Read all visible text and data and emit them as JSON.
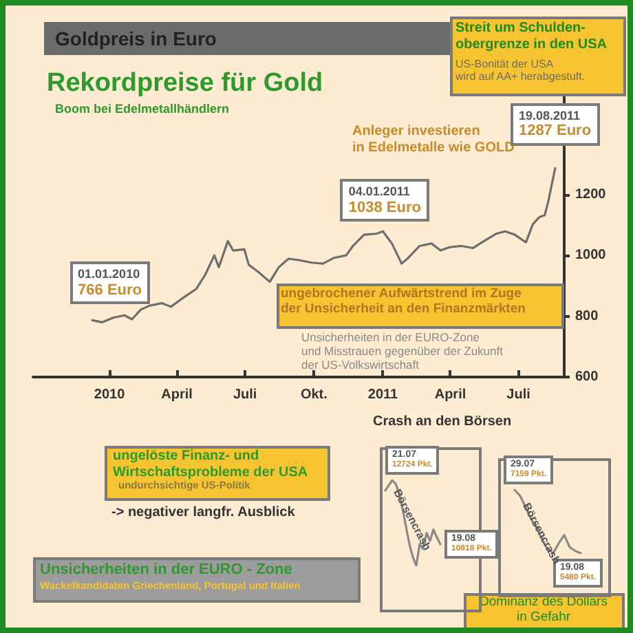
{
  "chart_data": [
    {
      "type": "line",
      "title": "Goldpreis in Euro",
      "subtitle": "Rekordpreise für Gold",
      "x": [
        "2009-12-09",
        "2009-12-22",
        "2010-01-06",
        "2010-01-21",
        "2010-01-31",
        "2010-02-12",
        "2010-02-24",
        "2010-03-12",
        "2010-03-24",
        "2010-04-08",
        "2010-04-27",
        "2010-05-09",
        "2010-05-21",
        "2010-05-27",
        "2010-06-08",
        "2010-06-15",
        "2010-06-30",
        "2010-07-06",
        "2010-07-19",
        "2010-08-03",
        "2010-08-15",
        "2010-08-28",
        "2010-09-12",
        "2010-09-28",
        "2010-10-13",
        "2010-10-28",
        "2010-11-13",
        "2010-11-22",
        "2010-12-07",
        "2010-12-23",
        "2011-01-01",
        "2011-01-13",
        "2011-01-26",
        "2011-02-04",
        "2011-02-19",
        "2011-03-07",
        "2011-03-19",
        "2011-03-31",
        "2011-04-16",
        "2011-05-01",
        "2011-05-16",
        "2011-06-01",
        "2011-06-13",
        "2011-06-26",
        "2011-07-11",
        "2011-07-20",
        "2011-07-29",
        "2011-08-05",
        "2011-08-10",
        "2011-08-15",
        "2011-08-19"
      ],
      "series": [
        {
          "color": "#6e6e6e",
          "values": [
            787,
            780,
            795,
            803,
            790,
            822,
            835,
            843,
            831,
            858,
            890,
            937,
            1000,
            961,
            1047,
            1016,
            1020,
            969,
            945,
            913,
            961,
            989,
            984,
            976,
            973,
            992,
            1000,
            1031,
            1068,
            1071,
            1079,
            1039,
            973,
            992,
            1031,
            1039,
            1016,
            1027,
            1031,
            1024,
            1047,
            1071,
            1079,
            1068,
            1043,
            1102,
            1126,
            1132,
            1180,
            1240,
            1287
          ]
        }
      ],
      "xlim": [
        "2009-09-21",
        "2011-08-31"
      ],
      "xticks": [
        {
          "value": "2010-01-01",
          "label": "2010"
        },
        {
          "value": "2010-04-01",
          "label": "April"
        },
        {
          "value": "2010-07-01",
          "label": "Juli"
        },
        {
          "value": "2010-10-01",
          "label": "Okt."
        },
        {
          "value": "2011-01-01",
          "label": "2011"
        },
        {
          "value": "2011-04-01",
          "label": "April"
        },
        {
          "value": "2011-07-01",
          "label": "Juli"
        }
      ],
      "ylim": [
        600,
        1550
      ],
      "yticks": [
        600,
        800,
        1000,
        1200
      ],
      "grid": false,
      "annotations": [
        "Boom bei Edelmetallhändlern",
        "Streit um Schulden-\nobergrenze in den USA",
        "US-Bonität der USA\nwird auf AA+ herabgestuft.",
        "Anleger investieren\nin Edelmetalle wie GOLD",
        {
          "text": "04.01.2011\n1038 Euro",
          "x": "2011-01-04",
          "y": 1038
        },
        {
          "text": "19.08.2011\n1287 Euro",
          "x": "2011-08-19",
          "y": 1287
        },
        {
          "text": "01.01.2010\n766 Euro",
          "x": "2010-01-01",
          "y": 766
        },
        "ungebrochener Aufwärtstrend im Zuge\nder Unsicherheit an den Finanzmärkten",
        "Unsicherheiten in der EURO-Zone\nund Misstrauen gegenüber der Zukunft\nder US-Volkswirtschaft",
        "Crash an den Börsen",
        "ungelöste Finanz- und\nWirtschaftsprobleme der USA",
        "undurchsichtige US-Politik",
        "-> negativer langfr. Ausblick",
        "Unsicherheiten in der EURO - Zone",
        "Wackelkandidaten Griechenland, Portugal und Italien",
        "Dominanz des Dollars\nin Gefahr"
      ]
    },
    {
      "type": "line",
      "categories": [
        null,
        null,
        null,
        null,
        null,
        null,
        null,
        null,
        null,
        null,
        null,
        null,
        null,
        null,
        null,
        null,
        null
      ],
      "series": [
        {
          "color": "#8a8a8a",
          "values": [
            12420,
            12570,
            12724,
            12620,
            12340,
            11890,
            11350,
            10820,
            10440,
            10180,
            10820,
            10670,
            11150,
            10920,
            11250,
            11020,
            10818
          ],
          "value_labels": [
            null,
            null,
            "21.07\n12724 Pkt.",
            null,
            null,
            null,
            null,
            null,
            null,
            null,
            null,
            null,
            null,
            null,
            null,
            null,
            "19.08\n10818 Pkt."
          ]
        }
      ],
      "annotations": [
        "Börsencrash"
      ]
    },
    {
      "type": "line",
      "categories": [
        null,
        null,
        null,
        null,
        null,
        null,
        null,
        null,
        null,
        null,
        null,
        null,
        null
      ],
      "series": [
        {
          "color": "#8a8a8a",
          "values": [
            7159,
            7000,
            6700,
            6380,
            6160,
            5840,
            5580,
            5480,
            5740,
            5960,
            5640,
            5540,
            5480
          ],
          "value_labels": [
            "29.07\n7159 Pkt.",
            null,
            null,
            null,
            null,
            null,
            null,
            null,
            null,
            null,
            null,
            null,
            "19.08\n5480 Pkt."
          ]
        }
      ],
      "annotations": [
        "Börsencrash"
      ]
    }
  ]
}
